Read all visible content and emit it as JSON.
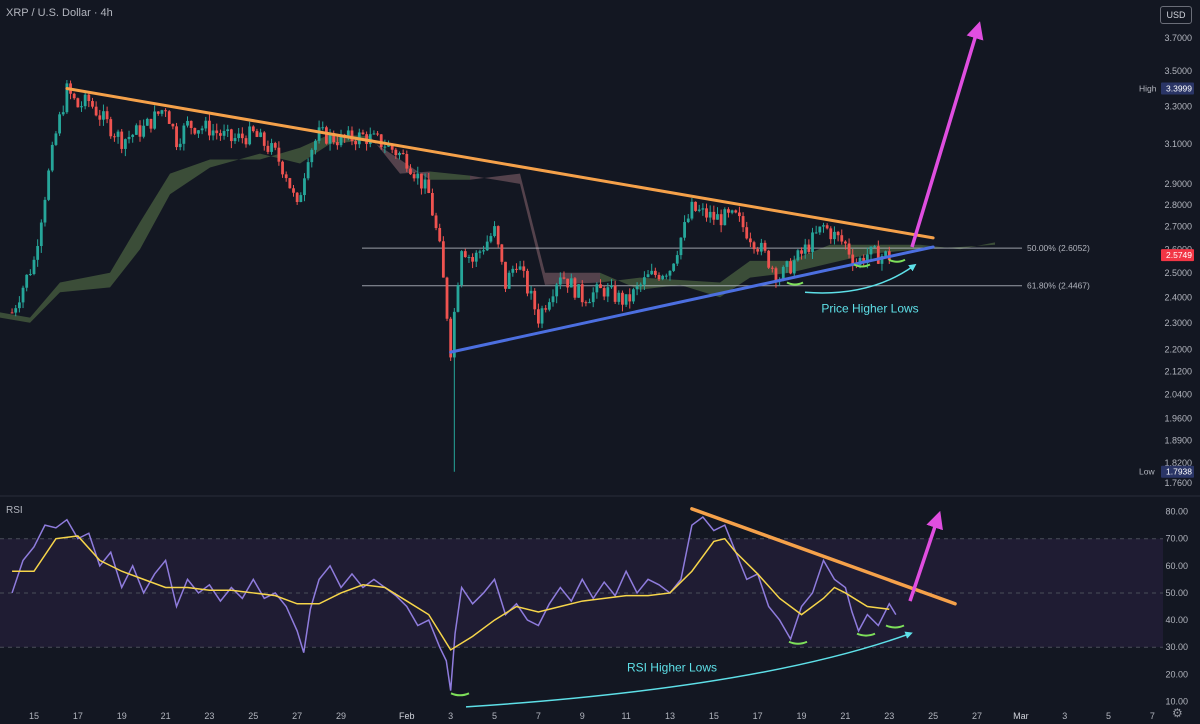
{
  "header": {
    "title": "XRP / U.S. Dollar · 4h",
    "currency": "USD",
    "rsi_title": "RSI"
  },
  "colors": {
    "background": "#131722",
    "candle_up": "#26a69a",
    "candle_down": "#ef5350",
    "resistance_line": "#f5a14a",
    "support_line": "#4c6fe0",
    "projection_arrow": "#e04ee0",
    "curve_arrow": "#5ee0e8",
    "rsi_line": "#8f7cdd",
    "rsi_ma": "#f6d54a",
    "cloud_bull": "#5d7a4a",
    "cloud_bear": "#8a6670",
    "low_marker": "#7ee05a"
  },
  "chart_data": [
    {
      "type": "candlestick",
      "title": "XRP / U.S. Dollar · 4h",
      "x_tick_labels": [
        "15",
        "17",
        "19",
        "21",
        "23",
        "25",
        "27",
        "29",
        "Feb",
        "3",
        "5",
        "7",
        "9",
        "11",
        "13",
        "15",
        "17",
        "19",
        "21",
        "23",
        "25",
        "27",
        "Mar",
        "3",
        "5",
        "7"
      ],
      "y_ticks": [
        1.76,
        1.82,
        1.89,
        1.96,
        2.04,
        2.12,
        2.2,
        2.3,
        2.4,
        2.5,
        2.6,
        2.7,
        2.8,
        2.9,
        3.1,
        3.3,
        3.5,
        3.7
      ],
      "y_tick_labels": [
        "1.7600",
        "1.8200",
        "1.8900",
        "1.9600",
        "2.0400",
        "2.1200",
        "2.2000",
        "2.3000",
        "2.4000",
        "2.5000",
        "2.6000",
        "2.7000",
        "2.8000",
        "2.9000",
        "3.1000",
        "3.3000",
        "3.5000",
        "3.7000"
      ],
      "y_scale": "log",
      "ylim": [
        1.74,
        3.85
      ],
      "high": {
        "label": "High",
        "value": "3.3999"
      },
      "low": {
        "label": "Low",
        "value": "1.7938"
      },
      "last_price": "2.5749",
      "fib_levels": [
        {
          "label": "50.00% (2.6052)",
          "value": 2.6052
        },
        {
          "label": "61.80% (2.4467)",
          "value": 2.4467
        }
      ],
      "price_path": [
        {
          "x": "14",
          "y": 2.34
        },
        {
          "x": "15",
          "y": 2.55
        },
        {
          "x": "15.5",
          "y": 2.85
        },
        {
          "x": "16",
          "y": 3.15
        },
        {
          "x": "16.5",
          "y": 3.39
        },
        {
          "x": "17",
          "y": 3.3
        },
        {
          "x": "17.5",
          "y": 3.33
        },
        {
          "x": "18",
          "y": 3.25
        },
        {
          "x": "19",
          "y": 3.12
        },
        {
          "x": "20",
          "y": 3.18
        },
        {
          "x": "21",
          "y": 3.3
        },
        {
          "x": "21.5",
          "y": 3.12
        },
        {
          "x": "22",
          "y": 3.2
        },
        {
          "x": "23",
          "y": 3.18
        },
        {
          "x": "24",
          "y": 3.12
        },
        {
          "x": "25",
          "y": 3.15
        },
        {
          "x": "26",
          "y": 3.05
        },
        {
          "x": "26.5",
          "y": 2.95
        },
        {
          "x": "27",
          "y": 2.78
        },
        {
          "x": "27.5",
          "y": 3.05
        },
        {
          "x": "28",
          "y": 3.15
        },
        {
          "x": "29",
          "y": 3.12
        },
        {
          "x": "30",
          "y": 3.14
        },
        {
          "x": "31",
          "y": 3.1
        },
        {
          "x": "Feb 1",
          "y": 3.02
        },
        {
          "x": "Feb 2",
          "y": 2.85
        },
        {
          "x": "Feb 2.5",
          "y": 2.6
        },
        {
          "x": "Feb 3",
          "y": 2.2
        },
        {
          "x": "Feb 3.5",
          "y": 2.62
        },
        {
          "x": "Feb 4",
          "y": 2.55
        },
        {
          "x": "Feb 5",
          "y": 2.68
        },
        {
          "x": "Feb 5.5",
          "y": 2.45
        },
        {
          "x": "Feb 6",
          "y": 2.55
        },
        {
          "x": "Feb 7",
          "y": 2.32
        },
        {
          "x": "Feb 8",
          "y": 2.5
        },
        {
          "x": "Feb 9",
          "y": 2.4
        },
        {
          "x": "Feb 10",
          "y": 2.43
        },
        {
          "x": "Feb 11",
          "y": 2.38
        },
        {
          "x": "Feb 12",
          "y": 2.48
        },
        {
          "x": "Feb 13",
          "y": 2.52
        },
        {
          "x": "Feb 14",
          "y": 2.78
        },
        {
          "x": "Feb 15",
          "y": 2.74
        },
        {
          "x": "Feb 16",
          "y": 2.74
        },
        {
          "x": "Feb 17",
          "y": 2.62
        },
        {
          "x": "Feb 18",
          "y": 2.48
        },
        {
          "x": "Feb 19",
          "y": 2.58
        },
        {
          "x": "Feb 20",
          "y": 2.7
        },
        {
          "x": "Feb 21",
          "y": 2.62
        },
        {
          "x": "Feb 21.5",
          "y": 2.54
        },
        {
          "x": "Feb 22",
          "y": 2.58
        },
        {
          "x": "Feb 23",
          "y": 2.57
        }
      ],
      "trendlines": [
        {
          "name": "resistance",
          "from": {
            "x": "16.5",
            "y": 3.4
          },
          "to": {
            "x": "Feb 25",
            "y": 2.65
          }
        },
        {
          "name": "support",
          "from": {
            "x": "Feb 3",
            "y": 2.19
          },
          "to": {
            "x": "Feb 25",
            "y": 2.61
          }
        }
      ],
      "annotations": [
        {
          "text": "Price Higher Lows"
        }
      ]
    },
    {
      "type": "line",
      "title": "RSI",
      "y_ticks": [
        10,
        20,
        30,
        40,
        50,
        60,
        70,
        80
      ],
      "y_tick_labels": [
        "10.00",
        "20.00",
        "30.00",
        "40.00",
        "50.00",
        "60.00",
        "70.00",
        "80.00"
      ],
      "ylim": [
        5,
        85
      ],
      "band": [
        30,
        70
      ],
      "series": [
        {
          "values": [
            {
              "x": "14",
              "y": 50
            },
            {
              "x": "14.5",
              "y": 62
            },
            {
              "x": "15",
              "y": 67
            },
            {
              "x": "15.5",
              "y": 75
            },
            {
              "x": "16",
              "y": 74
            },
            {
              "x": "16.5",
              "y": 77
            },
            {
              "x": "17",
              "y": 70
            },
            {
              "x": "17.5",
              "y": 72
            },
            {
              "x": "18",
              "y": 60
            },
            {
              "x": "18.5",
              "y": 65
            },
            {
              "x": "19",
              "y": 52
            },
            {
              "x": "19.5",
              "y": 60
            },
            {
              "x": "20",
              "y": 50
            },
            {
              "x": "20.5",
              "y": 57
            },
            {
              "x": "21",
              "y": 62
            },
            {
              "x": "21.5",
              "y": 45
            },
            {
              "x": "22",
              "y": 55
            },
            {
              "x": "22.5",
              "y": 50
            },
            {
              "x": "23",
              "y": 53
            },
            {
              "x": "23.5",
              "y": 47
            },
            {
              "x": "24",
              "y": 52
            },
            {
              "x": "24.5",
              "y": 48
            },
            {
              "x": "25",
              "y": 55
            },
            {
              "x": "25.5",
              "y": 48
            },
            {
              "x": "26",
              "y": 50
            },
            {
              "x": "26.5",
              "y": 45
            },
            {
              "x": "27",
              "y": 36
            },
            {
              "x": "27.3",
              "y": 28
            },
            {
              "x": "27.6",
              "y": 44
            },
            {
              "x": "28",
              "y": 55
            },
            {
              "x": "28.5",
              "y": 60
            },
            {
              "x": "29",
              "y": 52
            },
            {
              "x": "29.5",
              "y": 57
            },
            {
              "x": "30",
              "y": 52
            },
            {
              "x": "30.5",
              "y": 55
            },
            {
              "x": "31",
              "y": 52
            },
            {
              "x": "31.5",
              "y": 49
            },
            {
              "x": "Feb 1",
              "y": 45
            },
            {
              "x": "Feb 1.5",
              "y": 38
            },
            {
              "x": "Feb 2",
              "y": 40
            },
            {
              "x": "Feb 2.5",
              "y": 30
            },
            {
              "x": "Feb 2.8",
              "y": 25
            },
            {
              "x": "Feb 3",
              "y": 14
            },
            {
              "x": "Feb 3.2",
              "y": 35
            },
            {
              "x": "Feb 3.5",
              "y": 52
            },
            {
              "x": "Feb 4",
              "y": 46
            },
            {
              "x": "Feb 4.5",
              "y": 50
            },
            {
              "x": "Feb 5",
              "y": 55
            },
            {
              "x": "Feb 5.5",
              "y": 42
            },
            {
              "x": "Feb 6",
              "y": 46
            },
            {
              "x": "Feb 6.5",
              "y": 40
            },
            {
              "x": "Feb 7",
              "y": 38
            },
            {
              "x": "Feb 7.5",
              "y": 46
            },
            {
              "x": "Feb 8",
              "y": 52
            },
            {
              "x": "Feb 8.5",
              "y": 47
            },
            {
              "x": "Feb 9",
              "y": 55
            },
            {
              "x": "Feb 9.5",
              "y": 48
            },
            {
              "x": "Feb 10",
              "y": 54
            },
            {
              "x": "Feb 10.5",
              "y": 49
            },
            {
              "x": "Feb 11",
              "y": 58
            },
            {
              "x": "Feb 11.5",
              "y": 50
            },
            {
              "x": "Feb 12",
              "y": 55
            },
            {
              "x": "Feb 12.5",
              "y": 53
            },
            {
              "x": "Feb 13",
              "y": 50
            },
            {
              "x": "Feb 13.5",
              "y": 55
            },
            {
              "x": "Feb 14",
              "y": 75
            },
            {
              "x": "Feb 14.5",
              "y": 78
            },
            {
              "x": "Feb 15",
              "y": 73
            },
            {
              "x": "Feb 15.5",
              "y": 75
            },
            {
              "x": "Feb 16",
              "y": 65
            },
            {
              "x": "Feb 16.5",
              "y": 55
            },
            {
              "x": "Feb 17",
              "y": 57
            },
            {
              "x": "Feb 17.5",
              "y": 45
            },
            {
              "x": "Feb 18",
              "y": 40
            },
            {
              "x": "Feb 18.5",
              "y": 33
            },
            {
              "x": "Feb 19",
              "y": 45
            },
            {
              "x": "Feb 19.5",
              "y": 50
            },
            {
              "x": "Feb 20",
              "y": 62
            },
            {
              "x": "Feb 20.5",
              "y": 55
            },
            {
              "x": "Feb 21",
              "y": 52
            },
            {
              "x": "Feb 21.3",
              "y": 43
            },
            {
              "x": "Feb 21.6",
              "y": 36
            },
            {
              "x": "Feb 22",
              "y": 42
            },
            {
              "x": "Feb 22.5",
              "y": 38
            },
            {
              "x": "Feb 23",
              "y": 46
            },
            {
              "x": "Feb 23.3",
              "y": 42
            }
          ]
        },
        {
          "values": [
            {
              "x": "14",
              "y": 58
            },
            {
              "x": "15",
              "y": 58
            },
            {
              "x": "16",
              "y": 70
            },
            {
              "x": "17",
              "y": 71
            },
            {
              "x": "18",
              "y": 62
            },
            {
              "x": "19",
              "y": 58
            },
            {
              "x": "20",
              "y": 55
            },
            {
              "x": "21",
              "y": 52
            },
            {
              "x": "22",
              "y": 52
            },
            {
              "x": "23",
              "y": 51
            },
            {
              "x": "24",
              "y": 51
            },
            {
              "x": "25",
              "y": 50
            },
            {
              "x": "26",
              "y": 49
            },
            {
              "x": "27",
              "y": 46
            },
            {
              "x": "28",
              "y": 46
            },
            {
              "x": "29",
              "y": 50
            },
            {
              "x": "30",
              "y": 53
            },
            {
              "x": "31",
              "y": 52
            },
            {
              "x": "Feb 1",
              "y": 47
            },
            {
              "x": "Feb 2",
              "y": 42
            },
            {
              "x": "Feb 3",
              "y": 29
            },
            {
              "x": "Feb 4",
              "y": 34
            },
            {
              "x": "Feb 5",
              "y": 40
            },
            {
              "x": "Feb 6",
              "y": 45
            },
            {
              "x": "Feb 7",
              "y": 43
            },
            {
              "x": "Feb 8",
              "y": 45
            },
            {
              "x": "Feb 9",
              "y": 47
            },
            {
              "x": "Feb 10",
              "y": 48
            },
            {
              "x": "Feb 11",
              "y": 49
            },
            {
              "x": "Feb 12",
              "y": 49
            },
            {
              "x": "Feb 13",
              "y": 50
            },
            {
              "x": "Feb 14",
              "y": 58
            },
            {
              "x": "Feb 15",
              "y": 69
            },
            {
              "x": "Feb 15.5",
              "y": 70
            },
            {
              "x": "Feb 16",
              "y": 65
            },
            {
              "x": "Feb 17",
              "y": 57
            },
            {
              "x": "Feb 18",
              "y": 48
            },
            {
              "x": "Feb 19",
              "y": 42
            },
            {
              "x": "Feb 20",
              "y": 48
            },
            {
              "x": "Feb 20.5",
              "y": 52
            },
            {
              "x": "Feb 21",
              "y": 50
            },
            {
              "x": "Feb 22",
              "y": 45
            },
            {
              "x": "Feb 23",
              "y": 44
            }
          ]
        }
      ],
      "trendlines": [
        {
          "name": "rsi-resistance",
          "from": {
            "x": "Feb 14",
            "y": 81
          },
          "to": {
            "x": "Feb 26",
            "y": 46
          }
        }
      ],
      "annotations": [
        {
          "text": "RSI Higher Lows"
        }
      ]
    }
  ]
}
